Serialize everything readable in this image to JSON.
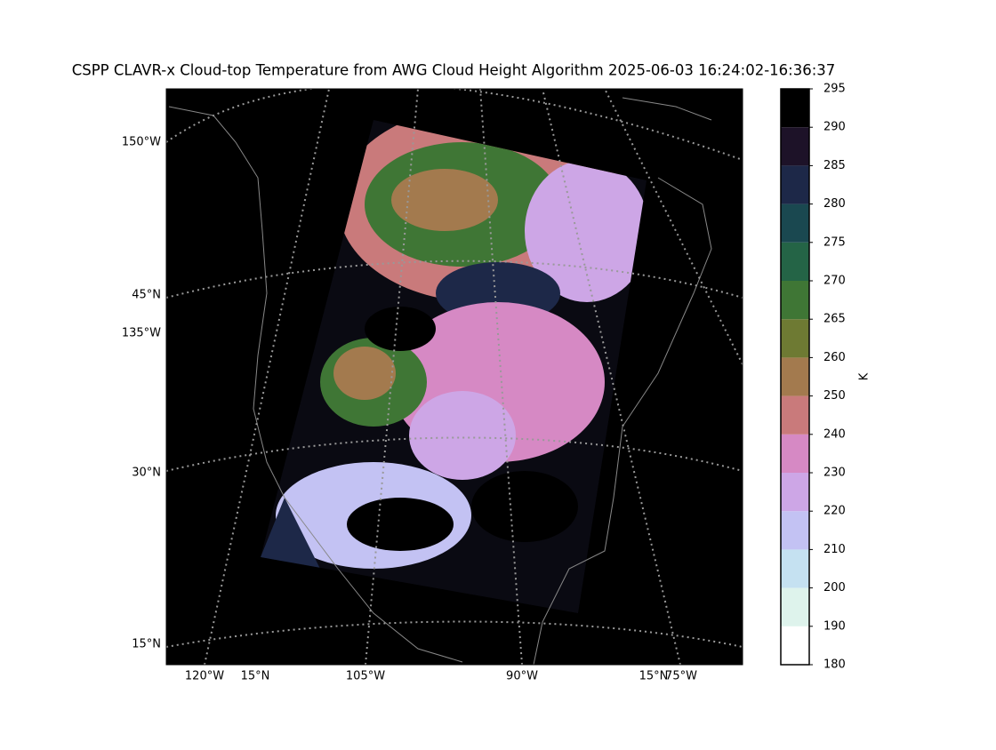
{
  "title": "CSPP CLAVR-x Cloud-top Temperature from AWG Cloud Height Algorithm 2025-06-03 16:24:02-16:36:37",
  "map": {
    "left_labels": [
      "150°W",
      "45°N",
      "135°W",
      "30°N",
      "15°N"
    ],
    "bottom_labels": [
      "120°W",
      "15°N",
      "105°W",
      "90°W",
      "15°N",
      "75°W"
    ]
  },
  "colorbar": {
    "label": "K",
    "boundaries": [
      180,
      190,
      200,
      210,
      220,
      230,
      240,
      250,
      260,
      265,
      270,
      275,
      280,
      285,
      290,
      295
    ],
    "colors": [
      "#ffffff",
      "#def3ec",
      "#c5e1f1",
      "#c3c2f3",
      "#cda6e6",
      "#d689c4",
      "#c97a7b",
      "#a37a4e",
      "#6e7a33",
      "#3f7635",
      "#246446",
      "#1a4850",
      "#1d2848",
      "#1d1228",
      "#000000"
    ]
  }
}
